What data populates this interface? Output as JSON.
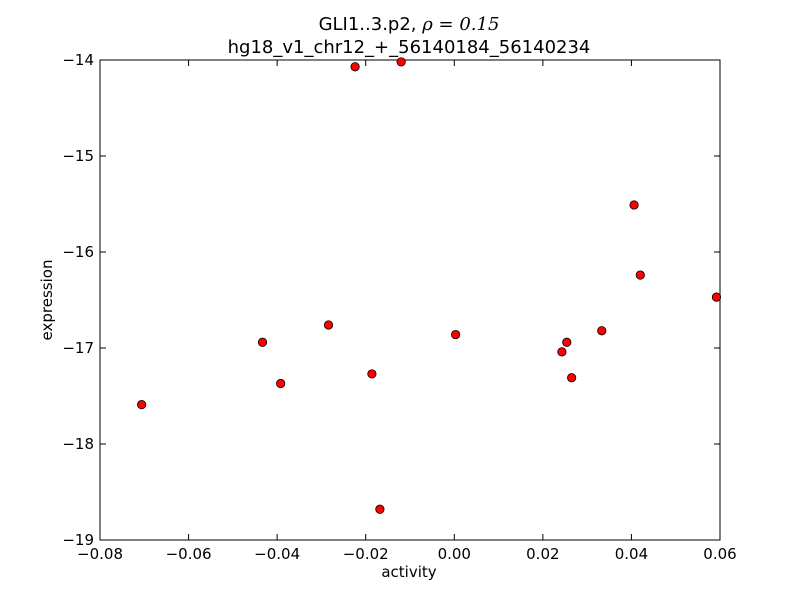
{
  "chart_data": {
    "type": "scatter",
    "title_line1": "GLI1..3.p2, ",
    "title_rho": "ρ = 0.15",
    "title_line2": "hg18_v1_chr12_+_56140184_56140234",
    "xlabel": "activity",
    "ylabel": "expression",
    "xlim": [
      -0.08,
      0.06
    ],
    "ylim": [
      -19,
      -14
    ],
    "xticks": [
      {
        "value": -0.08,
        "label": "−0.08"
      },
      {
        "value": -0.06,
        "label": "−0.06"
      },
      {
        "value": -0.04,
        "label": "−0.04"
      },
      {
        "value": -0.02,
        "label": "−0.02"
      },
      {
        "value": 0.0,
        "label": "0.00"
      },
      {
        "value": 0.02,
        "label": "0.02"
      },
      {
        "value": 0.04,
        "label": "0.04"
      },
      {
        "value": 0.06,
        "label": "0.06"
      }
    ],
    "yticks": [
      {
        "value": -14,
        "label": "−14"
      },
      {
        "value": -15,
        "label": "−15"
      },
      {
        "value": -16,
        "label": "−16"
      },
      {
        "value": -17,
        "label": "−17"
      },
      {
        "value": -18,
        "label": "−18"
      },
      {
        "value": -19,
        "label": "−19"
      }
    ],
    "grid": false,
    "marker_color": "#ff0000",
    "marker_edge": "#000000",
    "points": [
      {
        "x": -0.0706,
        "y": -17.59
      },
      {
        "x": -0.0433,
        "y": -16.94
      },
      {
        "x": -0.0392,
        "y": -17.37
      },
      {
        "x": -0.0284,
        "y": -16.76
      },
      {
        "x": -0.0224,
        "y": -14.07
      },
      {
        "x": -0.0186,
        "y": -17.27
      },
      {
        "x": -0.0168,
        "y": -18.68
      },
      {
        "x": -0.012,
        "y": -14.02
      },
      {
        "x": 0.0003,
        "y": -16.86
      },
      {
        "x": 0.0243,
        "y": -17.04
      },
      {
        "x": 0.0254,
        "y": -16.94
      },
      {
        "x": 0.0265,
        "y": -17.31
      },
      {
        "x": 0.0333,
        "y": -16.82
      },
      {
        "x": 0.0406,
        "y": -15.51
      },
      {
        "x": 0.042,
        "y": -16.24
      },
      {
        "x": 0.0592,
        "y": -16.47
      }
    ]
  }
}
